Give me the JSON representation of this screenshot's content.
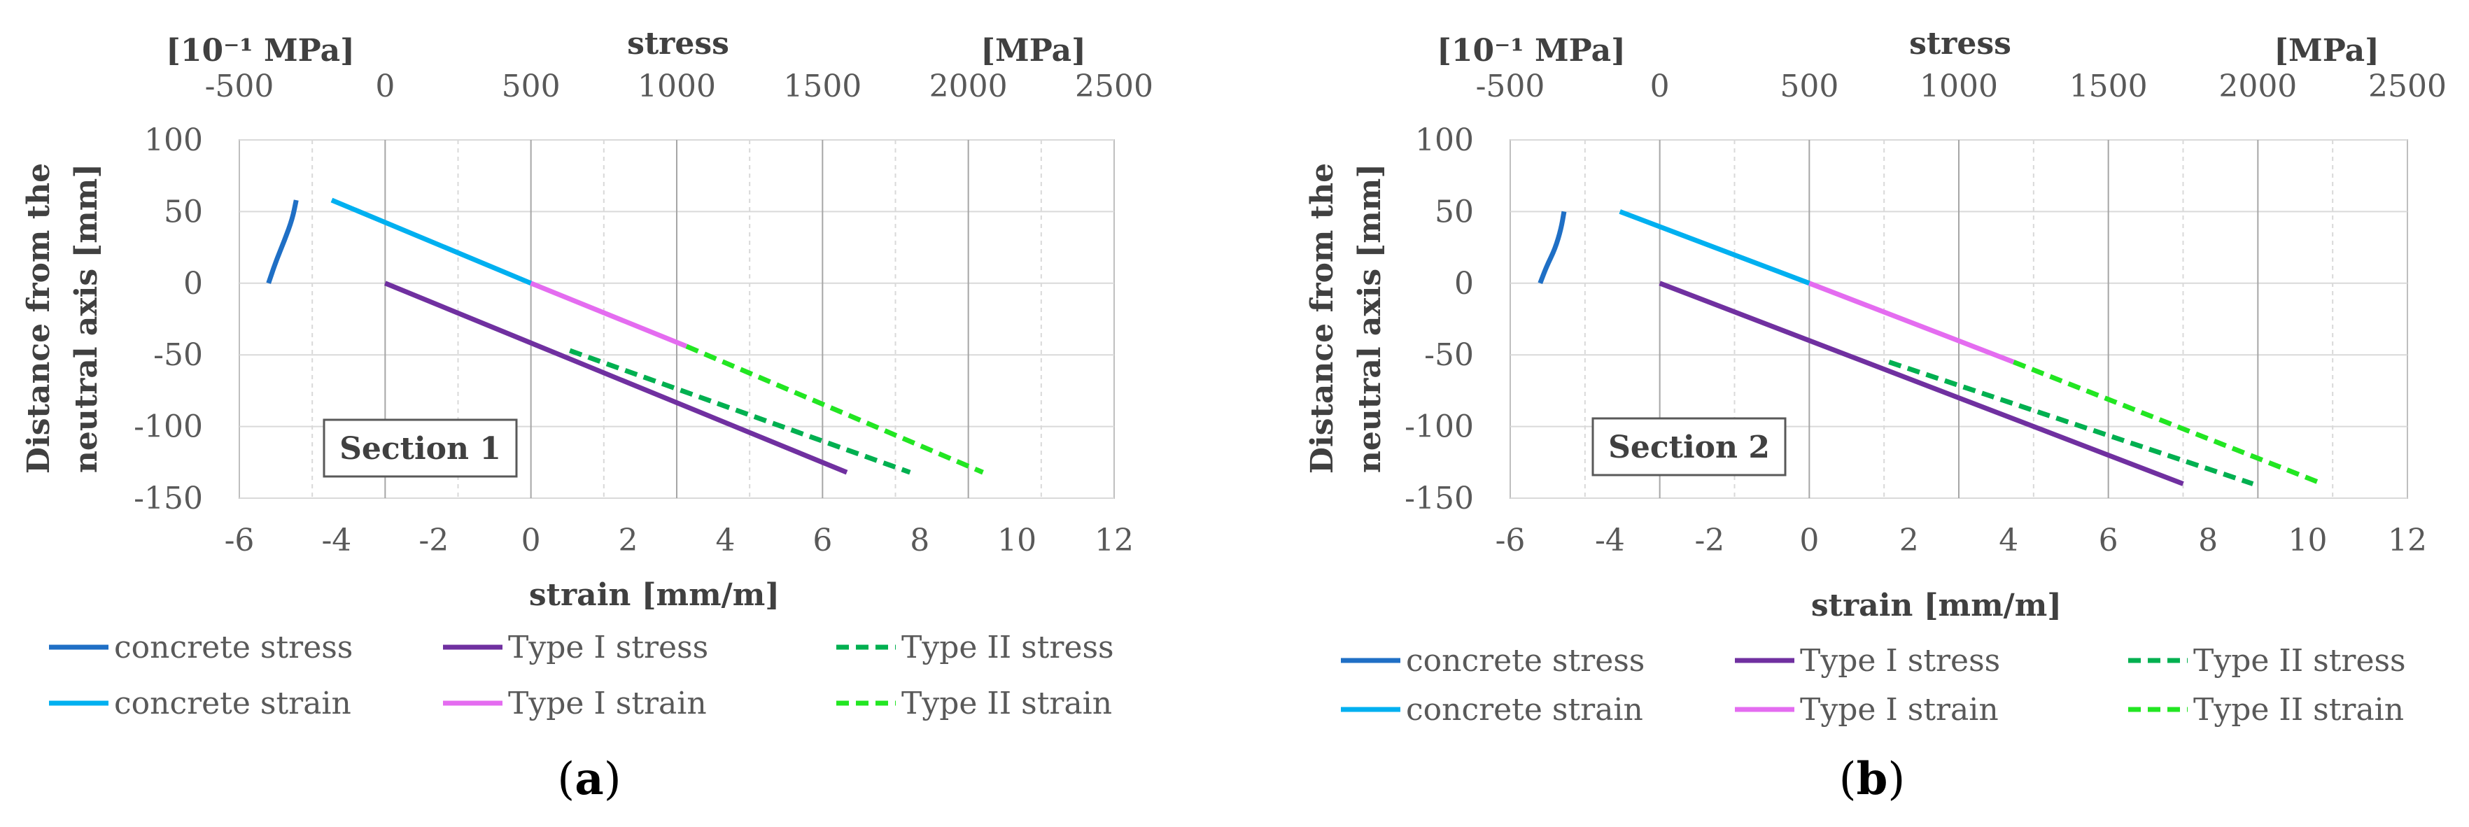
{
  "chart_data": [
    {
      "type": "line",
      "panel_label": "a",
      "panel_caption_open": "(",
      "panel_caption_close": ")",
      "section_label": "Section 1",
      "xlabel": "strain [mm/m]",
      "ylabel_line1": "Distance from the",
      "ylabel_line2": "neutral axis [mm]",
      "top_axis_title": "stress",
      "top_axis_left_unit": "[10⁻¹ MPa]",
      "top_axis_right_unit": "[MPa]",
      "xlim": [
        -6,
        12
      ],
      "ylim": [
        -150,
        100
      ],
      "top_xlim": [
        -500,
        2500
      ],
      "x_ticks": [
        "-6",
        "-4",
        "-2",
        "0",
        "2",
        "4",
        "6",
        "8",
        "10",
        "12"
      ],
      "y_ticks": [
        "100",
        "50",
        "0",
        "-50",
        "-100",
        "-150"
      ],
      "top_ticks": [
        "-500",
        "0",
        "500",
        "1000",
        "1500",
        "2000",
        "2500"
      ],
      "series": [
        {
          "name": "concrete stress",
          "color": "#1F6FC5",
          "dash": "solid",
          "axis": "top",
          "x": [
            -305,
            -318,
            -345,
            -375,
            -400
          ],
          "y": [
            58,
            45,
            30,
            15,
            0
          ],
          "curve": true
        },
        {
          "name": "Type I stress",
          "color": "#7030A0",
          "dash": "solid",
          "axis": "bottom",
          "x": [
            -3,
            6.5
          ],
          "y": [
            0,
            -132
          ]
        },
        {
          "name": "Type II stress",
          "color": "#00B050",
          "dash": "dashed",
          "axis": "bottom",
          "x": [
            0.8,
            7.8
          ],
          "y": [
            -47,
            -132
          ]
        },
        {
          "name": "concrete strain",
          "color": "#00B0F0",
          "dash": "solid",
          "axis": "bottom",
          "x": [
            -4.1,
            0
          ],
          "y": [
            58,
            0
          ]
        },
        {
          "name": "Type I strain",
          "color": "#E46CF0",
          "dash": "solid",
          "axis": "bottom",
          "x": [
            0,
            3.2
          ],
          "y": [
            0,
            -44
          ]
        },
        {
          "name": "Type II strain",
          "color": "#22E622",
          "dash": "dashed",
          "axis": "bottom",
          "x": [
            3.2,
            9.3
          ],
          "y": [
            -44,
            -132
          ]
        }
      ]
    },
    {
      "type": "line",
      "panel_label": "b",
      "panel_caption_open": "(",
      "panel_caption_close": ")",
      "section_label": "Section 2",
      "xlabel": "strain [mm/m]",
      "ylabel_line1": "Distance from the",
      "ylabel_line2": "neutral axis [mm]",
      "top_axis_title": "stress",
      "top_axis_left_unit": "[10⁻¹ MPa]",
      "top_axis_right_unit": "[MPa]",
      "xlim": [
        -6,
        12
      ],
      "ylim": [
        -150,
        100
      ],
      "top_xlim": [
        -500,
        2500
      ],
      "x_ticks": [
        "-6",
        "-4",
        "-2",
        "0",
        "2",
        "4",
        "6",
        "8",
        "10",
        "12"
      ],
      "y_ticks": [
        "100",
        "50",
        "0",
        "-50",
        "-100",
        "-150"
      ],
      "top_ticks": [
        "-500",
        "0",
        "500",
        "1000",
        "1500",
        "2000",
        "2500"
      ],
      "series": [
        {
          "name": "concrete stress",
          "color": "#1F6FC5",
          "dash": "solid",
          "axis": "top",
          "x": [
            -320,
            -330,
            -350,
            -378,
            -400
          ],
          "y": [
            50,
            38,
            24,
            12,
            0
          ],
          "curve": true
        },
        {
          "name": "Type I stress",
          "color": "#7030A0",
          "dash": "solid",
          "axis": "bottom",
          "x": [
            -3,
            7.5
          ],
          "y": [
            0,
            -140
          ]
        },
        {
          "name": "Type II stress",
          "color": "#00B050",
          "dash": "dashed",
          "axis": "bottom",
          "x": [
            1.6,
            8.9
          ],
          "y": [
            -55,
            -140
          ]
        },
        {
          "name": "concrete strain",
          "color": "#00B0F0",
          "dash": "solid",
          "axis": "bottom",
          "x": [
            -3.8,
            0
          ],
          "y": [
            50,
            0
          ]
        },
        {
          "name": "Type I strain",
          "color": "#E46CF0",
          "dash": "solid",
          "axis": "bottom",
          "x": [
            0,
            4.1
          ],
          "y": [
            0,
            -55
          ]
        },
        {
          "name": "Type II strain",
          "color": "#22E622",
          "dash": "dashed",
          "axis": "bottom",
          "x": [
            4.1,
            10.3
          ],
          "y": [
            -55,
            -140
          ]
        }
      ]
    }
  ]
}
